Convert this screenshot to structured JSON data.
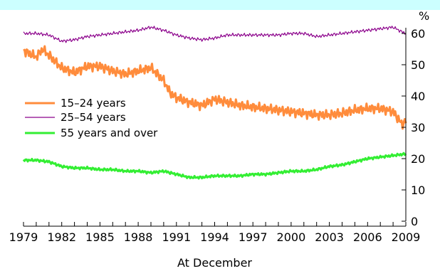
{
  "chart_data": {
    "type": "line",
    "ylabel": "%",
    "xlabel": "At December",
    "xlim": [
      1979,
      2009
    ],
    "ylim": [
      0,
      60
    ],
    "x_ticks": [
      "1979",
      "1982",
      "1985",
      "1988",
      "1991",
      "1994",
      "1997",
      "2000",
      "2003",
      "2006",
      "2009"
    ],
    "y_ticks": [
      "0",
      "10",
      "20",
      "30",
      "40",
      "50",
      "60"
    ],
    "grid": false,
    "legend_position": "left",
    "series": [
      {
        "name": "15–24 years",
        "color": "#ff8c3c",
        "points": [
          [
            1979.0,
            54.5
          ],
          [
            1980.0,
            52.5
          ],
          [
            1980.5,
            55.0
          ],
          [
            1981.0,
            53.0
          ],
          [
            1982.0,
            49.0
          ],
          [
            1983.0,
            47.5
          ],
          [
            1984.0,
            49.5
          ],
          [
            1985.0,
            49.5
          ],
          [
            1986.0,
            48.0
          ],
          [
            1987.0,
            47.0
          ],
          [
            1988.0,
            48.0
          ],
          [
            1989.0,
            49.0
          ],
          [
            1990.0,
            45.0
          ],
          [
            1990.5,
            41.0
          ],
          [
            1991.0,
            39.5
          ],
          [
            1992.0,
            38.0
          ],
          [
            1993.0,
            37.0
          ],
          [
            1994.0,
            39.0
          ],
          [
            1995.0,
            38.0
          ],
          [
            1996.0,
            37.0
          ],
          [
            1997.0,
            36.5
          ],
          [
            1998.0,
            36.0
          ],
          [
            1999.0,
            35.5
          ],
          [
            2000.0,
            35.0
          ],
          [
            2001.0,
            34.5
          ],
          [
            2002.0,
            34.0
          ],
          [
            2003.0,
            34.0
          ],
          [
            2004.0,
            34.5
          ],
          [
            2005.0,
            35.5
          ],
          [
            2006.0,
            36.0
          ],
          [
            2007.0,
            36.0
          ],
          [
            2008.0,
            35.0
          ],
          [
            2008.7,
            31.0
          ],
          [
            2009.0,
            32.0
          ]
        ]
      },
      {
        "name": "25–54 years",
        "color": "#8b008b",
        "points": [
          [
            1979.0,
            60.0
          ],
          [
            1980.0,
            60.0
          ],
          [
            1981.0,
            59.5
          ],
          [
            1982.0,
            57.5
          ],
          [
            1983.0,
            58.0
          ],
          [
            1984.0,
            59.0
          ],
          [
            1985.0,
            59.5
          ],
          [
            1986.0,
            60.0
          ],
          [
            1987.0,
            60.5
          ],
          [
            1988.0,
            61.0
          ],
          [
            1989.0,
            62.0
          ],
          [
            1990.0,
            61.0
          ],
          [
            1991.0,
            59.5
          ],
          [
            1992.0,
            58.5
          ],
          [
            1993.0,
            58.0
          ],
          [
            1994.0,
            58.5
          ],
          [
            1995.0,
            59.5
          ],
          [
            1996.0,
            59.5
          ],
          [
            1997.0,
            59.5
          ],
          [
            1998.0,
            59.5
          ],
          [
            1999.0,
            59.5
          ],
          [
            2000.0,
            60.0
          ],
          [
            2001.0,
            60.0
          ],
          [
            2002.0,
            59.0
          ],
          [
            2003.0,
            59.5
          ],
          [
            2004.0,
            60.0
          ],
          [
            2005.0,
            60.5
          ],
          [
            2006.0,
            61.0
          ],
          [
            2007.0,
            61.5
          ],
          [
            2008.0,
            62.0
          ],
          [
            2008.7,
            60.5
          ],
          [
            2009.0,
            60.0
          ]
        ]
      },
      {
        "name": "55 years and over",
        "color": "#33ee33",
        "points": [
          [
            1979.0,
            19.5
          ],
          [
            1980.0,
            19.5
          ],
          [
            1981.0,
            19.0
          ],
          [
            1982.0,
            17.5
          ],
          [
            1983.0,
            17.0
          ],
          [
            1984.0,
            17.0
          ],
          [
            1985.0,
            16.5
          ],
          [
            1986.0,
            16.5
          ],
          [
            1987.0,
            16.0
          ],
          [
            1988.0,
            16.0
          ],
          [
            1989.0,
            15.5
          ],
          [
            1990.0,
            16.0
          ],
          [
            1991.0,
            15.0
          ],
          [
            1992.0,
            14.0
          ],
          [
            1993.0,
            14.0
          ],
          [
            1994.0,
            14.5
          ],
          [
            1995.0,
            14.5
          ],
          [
            1996.0,
            14.5
          ],
          [
            1997.0,
            15.0
          ],
          [
            1998.0,
            15.0
          ],
          [
            1999.0,
            15.5
          ],
          [
            2000.0,
            16.0
          ],
          [
            2001.0,
            16.0
          ],
          [
            2002.0,
            16.5
          ],
          [
            2003.0,
            17.5
          ],
          [
            2004.0,
            18.0
          ],
          [
            2005.0,
            19.0
          ],
          [
            2006.0,
            20.0
          ],
          [
            2007.0,
            20.5
          ],
          [
            2008.0,
            21.0
          ],
          [
            2009.0,
            21.5
          ]
        ]
      }
    ]
  }
}
